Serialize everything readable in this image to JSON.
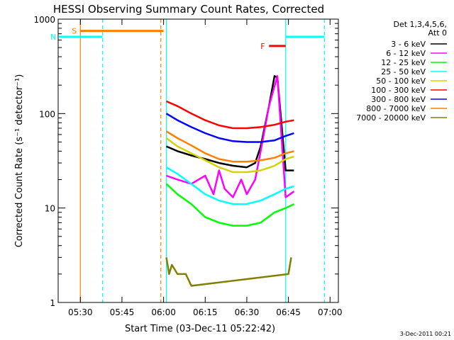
{
  "chart_data": {
    "type": "line",
    "title": "HESSI Observing Summary Count Rates, Corrected",
    "xlabel": "Start Time (03-Dec-11 05:22:42)",
    "ylabel": "Corrected Count Rate (s⁻¹ detector⁻¹)",
    "yscale": "log",
    "xlim_minutes_utc": [
      "05:22",
      "07:03"
    ],
    "ylim": [
      1,
      1000
    ],
    "x_ticks": [
      "05:30",
      "05:45",
      "06:00",
      "06:15",
      "06:30",
      "06:45",
      "07:00"
    ],
    "y_ticks": [
      "1",
      "10",
      "100",
      "1000"
    ],
    "footer_date": "3-Dec-2011 00:21",
    "legend": {
      "placement": "right",
      "header_line1": "Det 1,3,4,5,6,",
      "header_line2": "Att 0",
      "entries": [
        {
          "label": "3 - 6 keV",
          "color": "#000000"
        },
        {
          "label": "6 - 12 keV",
          "color": "#ff00ff"
        },
        {
          "label": "12 - 25 keV",
          "color": "#00ff00"
        },
        {
          "label": "25 - 50 keV",
          "color": "#00ffff"
        },
        {
          "label": "50 - 100 keV",
          "color": "#d4d400"
        },
        {
          "label": "100 - 300 keV",
          "color": "#ff0000"
        },
        {
          "label": "300 - 800 keV",
          "color": "#0000ff"
        },
        {
          "label": "800 - 7000 keV",
          "color": "#ff8000"
        },
        {
          "label": "7000 - 20000 keV",
          "color": "#808000"
        }
      ]
    },
    "flags": [
      {
        "label": "S",
        "color": "#ff8000",
        "start": "05:30",
        "end": "06:00",
        "level": 750
      },
      {
        "label": "N",
        "color": "#00ffff",
        "start": "05:22",
        "end": "05:38",
        "level": 650
      },
      {
        "label": "F",
        "color": "#ff0000",
        "start": "06:38",
        "end": "06:44",
        "level": 520
      },
      {
        "label": "",
        "color": "#00ffff",
        "start": "06:44",
        "end": "06:58",
        "level": 650
      }
    ],
    "vertical_markers": [
      {
        "time": "05:30",
        "color": "#ff8000",
        "style": "solid"
      },
      {
        "time": "05:38",
        "color": "#00ffff",
        "style": "dashed"
      },
      {
        "time": "05:59",
        "color": "#ff8000",
        "style": "dashed"
      },
      {
        "time": "06:01",
        "color": "#00ffff",
        "style": "solid"
      },
      {
        "time": "06:44",
        "color": "#00ffff",
        "style": "solid"
      },
      {
        "time": "06:58",
        "color": "#00ffff",
        "style": "dashed"
      }
    ],
    "series": [
      {
        "name": "3 - 6 keV",
        "color": "#000000",
        "x": [
          "06:01",
          "06:05",
          "06:10",
          "06:15",
          "06:20",
          "06:25",
          "06:30",
          "06:33",
          "06:35",
          "06:38",
          "06:40",
          "06:41",
          "06:44",
          "06:47"
        ],
        "y": [
          45,
          40,
          36,
          33,
          30,
          28,
          27,
          30,
          45,
          120,
          250,
          240,
          25,
          25
        ]
      },
      {
        "name": "6 - 12 keV",
        "color": "#ff00ff",
        "x": [
          "06:01",
          "06:05",
          "06:10",
          "06:15",
          "06:18",
          "06:20",
          "06:22",
          "06:25",
          "06:28",
          "06:30",
          "06:33",
          "06:35",
          "06:38",
          "06:41",
          "06:44",
          "06:47"
        ],
        "y": [
          22,
          20,
          18,
          22,
          14,
          25,
          16,
          13,
          20,
          14,
          20,
          40,
          120,
          250,
          13,
          15
        ]
      },
      {
        "name": "12 - 25 keV",
        "color": "#00ff00",
        "x": [
          "06:01",
          "06:05",
          "06:10",
          "06:15",
          "06:20",
          "06:25",
          "06:30",
          "06:35",
          "06:40",
          "06:44",
          "06:47"
        ],
        "y": [
          18,
          14,
          11,
          8,
          7,
          6.5,
          6.5,
          7,
          9,
          10,
          11
        ]
      },
      {
        "name": "25 - 50 keV",
        "color": "#00ffff",
        "x": [
          "06:01",
          "06:05",
          "06:10",
          "06:15",
          "06:20",
          "06:25",
          "06:30",
          "06:35",
          "06:40",
          "06:44",
          "06:47"
        ],
        "y": [
          27,
          23,
          18,
          14,
          12,
          11,
          11,
          12,
          14,
          16,
          17
        ]
      },
      {
        "name": "50 - 100 keV",
        "color": "#d4d400",
        "x": [
          "06:01",
          "06:05",
          "06:10",
          "06:15",
          "06:20",
          "06:25",
          "06:30",
          "06:35",
          "06:40",
          "06:44",
          "06:47"
        ],
        "y": [
          55,
          45,
          38,
          32,
          27,
          24,
          24,
          25,
          28,
          33,
          35
        ]
      },
      {
        "name": "100 - 300 keV",
        "color": "#ff0000",
        "x": [
          "06:01",
          "06:05",
          "06:10",
          "06:15",
          "06:20",
          "06:25",
          "06:30",
          "06:35",
          "06:40",
          "06:44",
          "06:47"
        ],
        "y": [
          135,
          120,
          100,
          85,
          75,
          70,
          70,
          72,
          76,
          82,
          85
        ]
      },
      {
        "name": "300 - 800 keV",
        "color": "#0000ff",
        "x": [
          "06:01",
          "06:05",
          "06:10",
          "06:15",
          "06:20",
          "06:25",
          "06:30",
          "06:35",
          "06:40",
          "06:44",
          "06:47"
        ],
        "y": [
          100,
          85,
          72,
          62,
          55,
          51,
          50,
          50,
          52,
          58,
          62
        ]
      },
      {
        "name": "800 - 7000 keV",
        "color": "#ff8000",
        "x": [
          "06:01",
          "06:05",
          "06:10",
          "06:15",
          "06:20",
          "06:25",
          "06:30",
          "06:35",
          "06:40",
          "06:44",
          "06:47"
        ],
        "y": [
          65,
          55,
          46,
          38,
          33,
          31,
          31,
          32,
          34,
          38,
          40
        ]
      },
      {
        "name": "7000 - 20000 keV",
        "color": "#808000",
        "x": [
          "06:01",
          "06:02",
          "06:03",
          "06:05",
          "06:08",
          "06:10",
          "06:45",
          "06:46"
        ],
        "y": [
          3,
          2,
          2.5,
          2,
          2,
          1.5,
          2,
          3
        ]
      }
    ]
  }
}
